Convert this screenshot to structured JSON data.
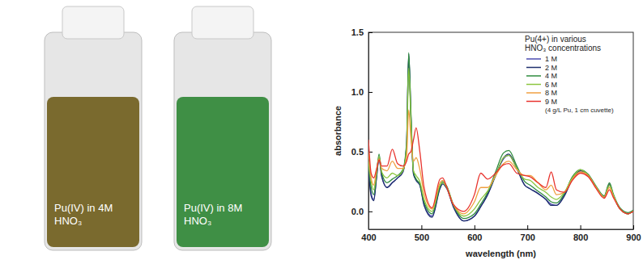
{
  "photo": {
    "labels": [
      "Pu(IV) in 4M HNO₃",
      "Pu(IV) in 8M HNO₃"
    ],
    "colors": [
      "#7a6a2e",
      "#3f8f45"
    ]
  },
  "chart_data": {
    "type": "line",
    "x_label": "wavelength (nm)",
    "y_label": "absorbance",
    "legend_title": "Pu(4+) in various HNO₃ concentrations",
    "annotations": [
      "(4 g/L Pu, 1 cm cuvette)"
    ],
    "legend": "upper right",
    "grid": false,
    "xlim": [
      400,
      900
    ],
    "xticks": [
      400,
      500,
      600,
      700,
      800,
      900
    ],
    "ylim": [
      -0.15,
      1.5
    ],
    "yticks": [
      {
        "value": 0,
        "label": "0.0"
      },
      {
        "value": 0.5,
        "label": "0.5"
      },
      {
        "value": 1,
        "label": "1.0"
      },
      {
        "value": 1.5,
        "label": "1.5"
      }
    ],
    "x": [
      400,
      405,
      410,
      415,
      420,
      425,
      435,
      445,
      455,
      465,
      472,
      476,
      480,
      485,
      490,
      497,
      505,
      520,
      535,
      540,
      548,
      560,
      580,
      600,
      612,
      625,
      640,
      655,
      665,
      680,
      695,
      705,
      720,
      735,
      745,
      755,
      770,
      785,
      800,
      815,
      830,
      845,
      855,
      862,
      875,
      890,
      900
    ],
    "series": [
      {
        "name": "1 M",
        "color": "#4b4bb0",
        "values": [
          0.38,
          0.15,
          0.1,
          0.28,
          0.45,
          0.3,
          0.2,
          0.24,
          0.28,
          0.33,
          0.55,
          1.3,
          0.8,
          0.32,
          0.26,
          0.22,
          0.06,
          -0.04,
          0.2,
          0.24,
          0.2,
          0.05,
          -0.08,
          -0.04,
          0.04,
          0.14,
          0.3,
          0.44,
          0.47,
          0.36,
          0.22,
          0.19,
          0.15,
          0.1,
          0.06,
          0.05,
          0.14,
          0.28,
          0.34,
          0.3,
          0.2,
          0.12,
          0.22,
          0.14,
          0.02,
          -0.02,
          0.0
        ]
      },
      {
        "name": "2 M",
        "color": "#1f2f6e",
        "values": [
          0.36,
          0.13,
          0.09,
          0.27,
          0.44,
          0.29,
          0.2,
          0.24,
          0.28,
          0.33,
          0.56,
          1.32,
          0.82,
          0.31,
          0.26,
          0.22,
          0.05,
          -0.05,
          0.19,
          0.23,
          0.19,
          0.04,
          -0.08,
          -0.04,
          0.04,
          0.14,
          0.3,
          0.45,
          0.48,
          0.36,
          0.22,
          0.19,
          0.15,
          0.1,
          0.05,
          0.05,
          0.13,
          0.27,
          0.34,
          0.3,
          0.2,
          0.12,
          0.23,
          0.14,
          0.02,
          -0.02,
          0.0
        ]
      },
      {
        "name": "4 M",
        "color": "#2e8b3e",
        "values": [
          0.4,
          0.2,
          0.14,
          0.3,
          0.48,
          0.32,
          0.24,
          0.27,
          0.3,
          0.35,
          0.58,
          1.33,
          0.85,
          0.33,
          0.27,
          0.23,
          0.08,
          -0.02,
          0.21,
          0.25,
          0.21,
          0.06,
          -0.06,
          -0.02,
          0.06,
          0.16,
          0.33,
          0.49,
          0.51,
          0.38,
          0.25,
          0.22,
          0.17,
          0.12,
          0.08,
          0.07,
          0.15,
          0.29,
          0.35,
          0.31,
          0.21,
          0.13,
          0.24,
          0.15,
          0.03,
          -0.01,
          0.01
        ]
      },
      {
        "name": "6 M",
        "color": "#8cc63f",
        "values": [
          0.42,
          0.25,
          0.18,
          0.32,
          0.46,
          0.33,
          0.28,
          0.32,
          0.3,
          0.34,
          0.52,
          1.2,
          0.78,
          0.34,
          0.3,
          0.25,
          0.1,
          0.0,
          0.22,
          0.24,
          0.2,
          0.06,
          -0.04,
          0.02,
          0.1,
          0.17,
          0.3,
          0.45,
          0.47,
          0.36,
          0.27,
          0.26,
          0.2,
          0.16,
          0.12,
          0.1,
          0.16,
          0.28,
          0.35,
          0.3,
          0.2,
          0.12,
          0.22,
          0.14,
          0.02,
          -0.02,
          0.0
        ]
      },
      {
        "name": "8 M",
        "color": "#f0a040",
        "values": [
          0.5,
          0.28,
          0.22,
          0.34,
          0.44,
          0.36,
          0.34,
          0.42,
          0.36,
          0.36,
          0.46,
          0.85,
          0.62,
          0.42,
          0.45,
          0.35,
          0.15,
          0.02,
          0.24,
          0.26,
          0.2,
          0.06,
          -0.02,
          0.08,
          0.2,
          0.2,
          0.3,
          0.4,
          0.42,
          0.35,
          0.3,
          0.3,
          0.24,
          0.18,
          0.22,
          0.14,
          0.16,
          0.27,
          0.33,
          0.3,
          0.2,
          0.12,
          0.2,
          0.13,
          0.02,
          -0.02,
          0.0
        ]
      },
      {
        "name": "9 M",
        "color": "#e8332d",
        "values": [
          0.6,
          0.32,
          0.28,
          0.35,
          0.43,
          0.38,
          0.38,
          0.52,
          0.4,
          0.38,
          0.42,
          0.48,
          0.5,
          0.6,
          0.7,
          0.5,
          0.2,
          0.03,
          0.27,
          0.28,
          0.2,
          0.06,
          0.0,
          0.14,
          0.32,
          0.27,
          0.32,
          0.39,
          0.4,
          0.32,
          0.3,
          0.29,
          0.24,
          0.2,
          0.33,
          0.18,
          0.16,
          0.26,
          0.32,
          0.29,
          0.19,
          0.11,
          0.18,
          0.12,
          0.02,
          -0.02,
          0.0
        ]
      }
    ]
  }
}
